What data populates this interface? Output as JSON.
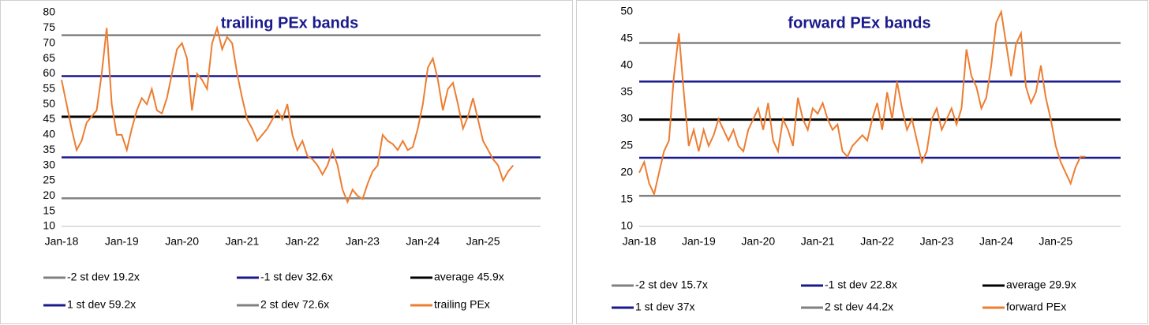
{
  "chart_data": [
    {
      "type": "line",
      "title": "trailing PEx bands",
      "categories": [
        "Jan-18",
        null,
        null,
        null,
        null,
        null,
        null,
        null,
        null,
        null,
        null,
        null,
        "Jan-19",
        null,
        null,
        null,
        null,
        null,
        null,
        null,
        null,
        null,
        null,
        null,
        "Jan-20",
        null,
        null,
        null,
        null,
        null,
        null,
        null,
        null,
        null,
        null,
        null,
        "Jan-21",
        null,
        null,
        null,
        null,
        null,
        null,
        null,
        null,
        null,
        null,
        null,
        "Jan-22",
        null,
        null,
        null,
        null,
        null,
        null,
        null,
        null,
        null,
        null,
        null,
        "Jan-23",
        null,
        null,
        null,
        null,
        null,
        null,
        null,
        null,
        null,
        null,
        null,
        "Jan-24",
        null,
        null,
        null,
        null,
        null,
        null,
        null,
        null,
        null,
        null,
        null,
        "Jan-25",
        null,
        null,
        null,
        null,
        null,
        null
      ],
      "series": [
        {
          "name": "trailing PEx",
          "color": "#ed7d31",
          "values": [
            58,
            50,
            42,
            35,
            38,
            44,
            46,
            48,
            60,
            75,
            50,
            40,
            40,
            35,
            42,
            48,
            52,
            50,
            55,
            48,
            47,
            52,
            60,
            68,
            70,
            65,
            48,
            60,
            58,
            55,
            70,
            75,
            68,
            72,
            70,
            60,
            52,
            45,
            42,
            38,
            40,
            42,
            45,
            48,
            45,
            50,
            40,
            35,
            38,
            33,
            32,
            30,
            27,
            30,
            35,
            30,
            22,
            18,
            22,
            20,
            19,
            24,
            28,
            30,
            40,
            38,
            37,
            35,
            38,
            35,
            36,
            42,
            50,
            62,
            65,
            58,
            48,
            55,
            57,
            50,
            42,
            46,
            52,
            45,
            38,
            35,
            32,
            30,
            25,
            28,
            30
          ]
        }
      ],
      "reference_lines": [
        {
          "name": "-2 st dev 19.2x",
          "value": 19.2,
          "color": "#808080"
        },
        {
          "name": "-1 st dev 32.6x",
          "value": 32.6,
          "color": "#1a1a8c"
        },
        {
          "name": "average 45.9x",
          "value": 45.9,
          "color": "#000000"
        },
        {
          "name": "1 st dev 59.2x",
          "value": 59.2,
          "color": "#1a1a8c"
        },
        {
          "name": "2 st dev 72.6x",
          "value": 72.6,
          "color": "#808080"
        }
      ],
      "ylim": [
        10,
        80
      ],
      "yticks": [
        10,
        15,
        20,
        25,
        30,
        35,
        40,
        45,
        50,
        55,
        60,
        65,
        70,
        75,
        80
      ]
    },
    {
      "type": "line",
      "title": "forward PEx bands",
      "categories": [
        "Jan-18",
        null,
        null,
        null,
        null,
        null,
        null,
        null,
        null,
        null,
        null,
        null,
        "Jan-19",
        null,
        null,
        null,
        null,
        null,
        null,
        null,
        null,
        null,
        null,
        null,
        "Jan-20",
        null,
        null,
        null,
        null,
        null,
        null,
        null,
        null,
        null,
        null,
        null,
        "Jan-21",
        null,
        null,
        null,
        null,
        null,
        null,
        null,
        null,
        null,
        null,
        null,
        "Jan-22",
        null,
        null,
        null,
        null,
        null,
        null,
        null,
        null,
        null,
        null,
        null,
        "Jan-23",
        null,
        null,
        null,
        null,
        null,
        null,
        null,
        null,
        null,
        null,
        null,
        "Jan-24",
        null,
        null,
        null,
        null,
        null,
        null,
        null,
        null,
        null,
        null,
        null,
        "Jan-25",
        null,
        null,
        null,
        null,
        null,
        null
      ],
      "series": [
        {
          "name": "forward PEx",
          "color": "#ed7d31",
          "values": [
            20,
            22,
            18,
            16,
            20,
            24,
            26,
            38,
            46,
            35,
            25,
            28,
            24,
            28,
            25,
            27,
            30,
            28,
            26,
            28,
            25,
            24,
            28,
            30,
            32,
            28,
            33,
            26,
            24,
            30,
            28,
            25,
            34,
            30,
            28,
            32,
            31,
            33,
            30,
            28,
            29,
            24,
            23,
            25,
            26,
            27,
            26,
            30,
            33,
            28,
            35,
            30,
            37,
            32,
            28,
            30,
            26,
            22,
            24,
            30,
            32,
            28,
            30,
            32,
            29,
            32,
            43,
            38,
            36,
            32,
            34,
            40,
            48,
            50,
            44,
            38,
            44,
            46,
            36,
            33,
            35,
            40,
            34,
            30,
            25,
            22,
            20,
            18,
            21,
            23,
            23
          ]
        }
      ],
      "reference_lines": [
        {
          "name": "-2 st dev 15.7x",
          "value": 15.7,
          "color": "#808080"
        },
        {
          "name": "-1 st dev 22.8x",
          "value": 22.8,
          "color": "#1a1a8c"
        },
        {
          "name": "average 29.9x",
          "value": 29.9,
          "color": "#000000"
        },
        {
          "name": "1 st dev 37x",
          "value": 37,
          "color": "#1a1a8c"
        },
        {
          "name": "2 st dev 44.2x",
          "value": 44.2,
          "color": "#808080"
        }
      ],
      "ylim": [
        10,
        50
      ],
      "yticks": [
        10,
        15,
        20,
        25,
        30,
        35,
        40,
        45,
        50
      ]
    }
  ]
}
